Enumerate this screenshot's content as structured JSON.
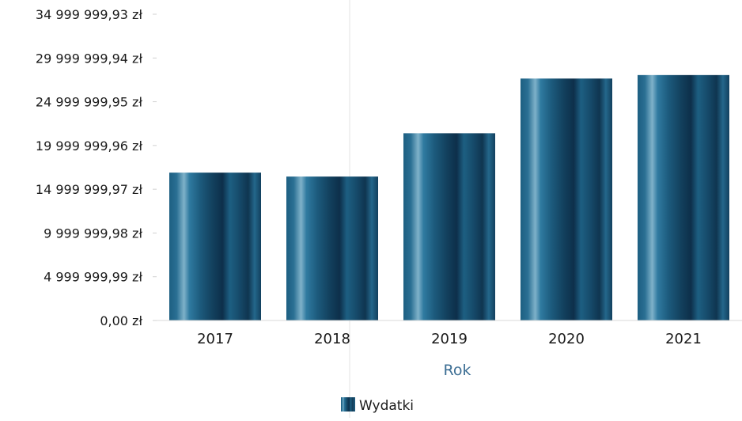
{
  "chart_data": {
    "type": "bar",
    "categories": [
      "2017",
      "2018",
      "2019",
      "2020",
      "2021"
    ],
    "series": [
      {
        "name": "Wydatki",
        "values": [
          16900000,
          16450000,
          21400000,
          27650000,
          28050000
        ]
      }
    ],
    "ylim": [
      0,
      34999999.93
    ],
    "y_ticks": [
      {
        "value": 0,
        "label": "0,00 zł"
      },
      {
        "value": 4999999.99,
        "label": "4 999 999,99 zł"
      },
      {
        "value": 9999999.98,
        "label": "9 999 999,98 zł"
      },
      {
        "value": 14999999.97,
        "label": "14 999 999,97 zł"
      },
      {
        "value": 19999999.96,
        "label": "19 999 999,96 zł"
      },
      {
        "value": 24999999.95,
        "label": "24 999 999,95 zł"
      },
      {
        "value": 29999999.94,
        "label": "29 999 999,94 zł"
      },
      {
        "value": 34999999.93,
        "label": "34 999 999,93 zł"
      }
    ],
    "xlabel": "Rok",
    "ylabel": "",
    "grid": false,
    "legend": {
      "position": "bottom",
      "entries": [
        "Wydatki"
      ]
    },
    "colors": {
      "bar_base": "#1d5f82",
      "bar_dark": "#0d2f4a",
      "bar_light": "#7fb2c9",
      "axis_title": "#3c6e94"
    }
  }
}
